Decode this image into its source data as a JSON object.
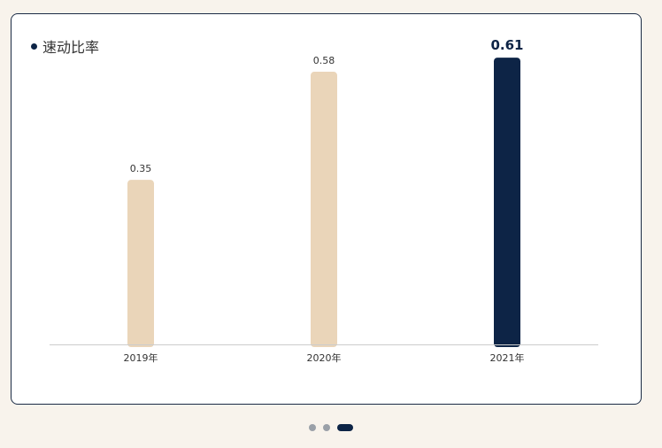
{
  "card": {
    "title": "速动比率"
  },
  "colors": {
    "bar_normal": "#ead5b9",
    "bar_highlight": "#0d2446",
    "axis": "#cccccc",
    "label": "#333333",
    "highlight_label": "#0d2446"
  },
  "chart_data": {
    "type": "bar",
    "title": "速动比率",
    "categories": [
      "2019年",
      "2020年",
      "2021年"
    ],
    "values": [
      0.35,
      0.58,
      0.61
    ],
    "value_labels": [
      "0.35",
      "0.58",
      "0.61"
    ],
    "highlight_index": 2,
    "ylim": [
      0,
      0.7
    ],
    "grid": false,
    "legend": "none"
  },
  "pager": {
    "count": 3,
    "active_index": 2
  }
}
